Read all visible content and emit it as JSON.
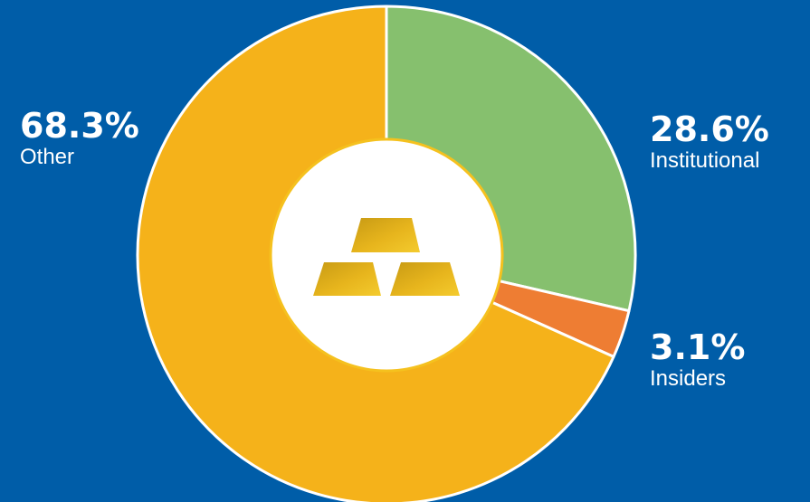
{
  "colors": {
    "background": "#005DA8",
    "institutional": "#86C06E",
    "insiders": "#EE7D33",
    "other": "#F5B21A",
    "center": "#ffffff",
    "divider": "#ffffff"
  },
  "icon": "gold-bars-icon",
  "chart_data": {
    "type": "pie",
    "style": "donut",
    "start": "12 o'clock",
    "direction": "clockwise",
    "slices": [
      {
        "label": "Institutional",
        "value": 28.6,
        "value_label": "28.6%",
        "color": "#86C06E"
      },
      {
        "label": "Insiders",
        "value": 3.1,
        "value_label": "3.1%",
        "color": "#EE7D33"
      },
      {
        "label": "Other",
        "value": 68.3,
        "value_label": "68.3%",
        "color": "#F5B21A"
      }
    ]
  }
}
